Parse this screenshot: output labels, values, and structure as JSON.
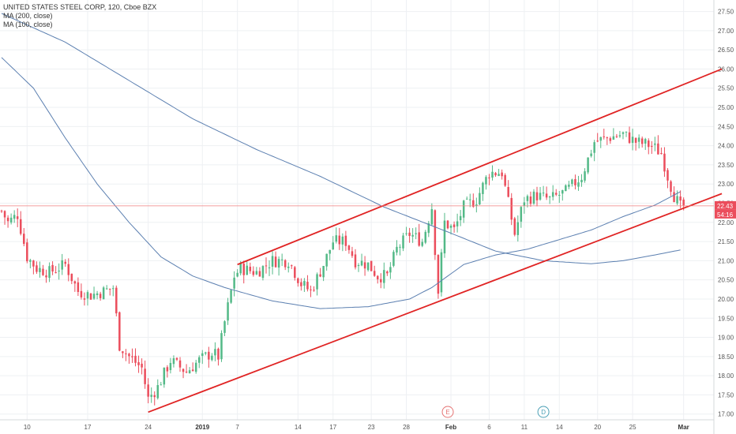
{
  "legend": {
    "title": "UNITED STATES STEEL CORP, 120, Cboe BZX",
    "ma200": "MA (200, close)",
    "ma100": "MA (100, close)"
  },
  "colors": {
    "up": "#53b987",
    "down": "#eb4d5c",
    "ma": "#5b7fb0",
    "channel": "#e02424",
    "price_line": "#f08080",
    "price_box": "#eb4d5c",
    "grid": "#eef0f3"
  },
  "price_label": "22.43",
  "countdown_label": "54:16",
  "event_markers": [
    {
      "label": "E",
      "color": "#e57373",
      "bar": 140
    },
    {
      "label": "D",
      "color": "#4a9fb5",
      "bar": 170
    }
  ],
  "chart_data": {
    "type": "candlestick",
    "title": "UNITED STATES STEEL CORP, 120, Cboe BZX",
    "y_ticks": [
      "17.00",
      "17.50",
      "18.00",
      "18.50",
      "19.00",
      "19.50",
      "20.00",
      "20.50",
      "21.00",
      "21.50",
      "22.00",
      "22.50",
      "23.00",
      "23.50",
      "24.00",
      "24.50",
      "25.00",
      "25.50",
      "26.00",
      "26.50",
      "27.00",
      "27.50"
    ],
    "ylim": [
      16.85,
      27.8
    ],
    "bar_count": 224,
    "x_ticks": [
      {
        "label": "10",
        "bar": 8
      },
      {
        "label": "17",
        "bar": 27
      },
      {
        "label": "24",
        "bar": 46
      },
      {
        "label": "2019",
        "bar": 63,
        "bold": true
      },
      {
        "label": "7",
        "bar": 74
      },
      {
        "label": "14",
        "bar": 93
      },
      {
        "label": "17",
        "bar": 104
      },
      {
        "label": "23",
        "bar": 116
      },
      {
        "label": "28",
        "bar": 127
      },
      {
        "label": "Feb",
        "bar": 141,
        "bold": true
      },
      {
        "label": "6",
        "bar": 153
      },
      {
        "label": "11",
        "bar": 164
      },
      {
        "label": "14",
        "bar": 175
      },
      {
        "label": "20",
        "bar": 187
      },
      {
        "label": "25",
        "bar": 198
      },
      {
        "label": "Mar",
        "bar": 214,
        "bold": true
      }
    ],
    "anchors": [
      [
        0,
        22.3
      ],
      [
        2,
        22.0
      ],
      [
        5,
        22.2
      ],
      [
        8,
        21.1
      ],
      [
        11,
        20.8
      ],
      [
        15,
        20.7
      ],
      [
        20,
        20.9
      ],
      [
        24,
        20.2
      ],
      [
        28,
        20.1
      ],
      [
        32,
        20.2
      ],
      [
        35,
        20.3
      ],
      [
        37,
        18.8
      ],
      [
        40,
        18.5
      ],
      [
        44,
        18.2
      ],
      [
        46,
        17.4
      ],
      [
        49,
        17.7
      ],
      [
        53,
        18.4
      ],
      [
        58,
        18.1
      ],
      [
        62,
        18.4
      ],
      [
        66,
        18.6
      ],
      [
        68,
        18.5
      ],
      [
        70,
        19.4
      ],
      [
        73,
        20.6
      ],
      [
        75,
        20.8
      ],
      [
        80,
        20.7
      ],
      [
        85,
        21.0
      ],
      [
        90,
        21.0
      ],
      [
        94,
        20.4
      ],
      [
        97,
        20.2
      ],
      [
        101,
        20.9
      ],
      [
        104,
        21.5
      ],
      [
        108,
        21.5
      ],
      [
        111,
        21.0
      ],
      [
        115,
        20.9
      ],
      [
        118,
        20.6
      ],
      [
        121,
        20.6
      ],
      [
        124,
        21.3
      ],
      [
        128,
        21.7
      ],
      [
        132,
        21.5
      ],
      [
        135,
        22.4
      ],
      [
        137,
        20.2
      ],
      [
        139,
        22.0
      ],
      [
        142,
        21.8
      ],
      [
        145,
        22.4
      ],
      [
        149,
        22.6
      ],
      [
        153,
        23.3
      ],
      [
        157,
        23.3
      ],
      [
        159,
        22.5
      ],
      [
        161,
        21.7
      ],
      [
        164,
        22.6
      ],
      [
        168,
        22.7
      ],
      [
        172,
        22.6
      ],
      [
        177,
        22.8
      ],
      [
        182,
        23.2
      ],
      [
        186,
        24.1
      ],
      [
        190,
        24.2
      ],
      [
        195,
        24.3
      ],
      [
        199,
        24.1
      ],
      [
        204,
        24.0
      ],
      [
        207,
        23.8
      ],
      [
        209,
        23.2
      ],
      [
        211,
        22.7
      ],
      [
        213,
        22.4
      ],
      [
        214,
        22.43
      ]
    ],
    "ma200_anchors": [
      [
        0,
        27.45
      ],
      [
        20,
        26.7
      ],
      [
        40,
        25.7
      ],
      [
        60,
        24.7
      ],
      [
        80,
        23.9
      ],
      [
        100,
        23.2
      ],
      [
        120,
        22.4
      ],
      [
        140,
        21.75
      ],
      [
        155,
        21.25
      ],
      [
        170,
        21.0
      ],
      [
        185,
        20.92
      ],
      [
        195,
        21.0
      ],
      [
        205,
        21.15
      ],
      [
        213,
        21.28
      ]
    ],
    "ma100_anchors": [
      [
        0,
        26.3
      ],
      [
        10,
        25.5
      ],
      [
        20,
        24.2
      ],
      [
        30,
        23.0
      ],
      [
        40,
        22.0
      ],
      [
        50,
        21.1
      ],
      [
        60,
        20.6
      ],
      [
        70,
        20.3
      ],
      [
        85,
        19.95
      ],
      [
        100,
        19.75
      ],
      [
        115,
        19.8
      ],
      [
        128,
        20.0
      ],
      [
        135,
        20.3
      ],
      [
        145,
        20.9
      ],
      [
        155,
        21.15
      ],
      [
        165,
        21.3
      ],
      [
        175,
        21.55
      ],
      [
        185,
        21.8
      ],
      [
        195,
        22.15
      ],
      [
        205,
        22.45
      ],
      [
        213,
        22.8
      ]
    ],
    "channel_upper": {
      "from": [
        74,
        20.9
      ],
      "to": [
        226,
        26.0
      ]
    },
    "channel_lower": {
      "from": [
        46,
        17.05
      ],
      "to": [
        226,
        22.75
      ]
    }
  }
}
